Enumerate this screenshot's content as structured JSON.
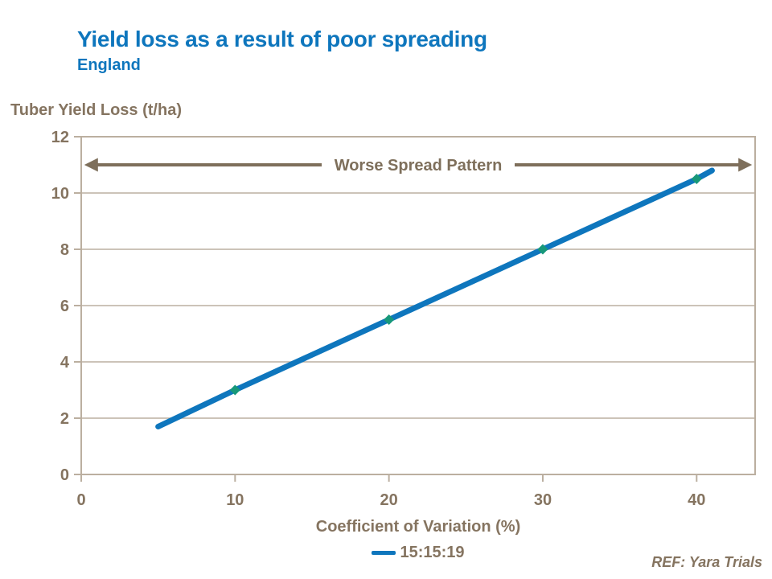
{
  "header": {
    "title": "Yield loss as a result of poor spreading",
    "subtitle": "England"
  },
  "colors": {
    "accent_blue": "#0e76bd",
    "text_brown": "#857460",
    "axis_tan": "#bbafa0",
    "arrow_brown": "#7e6f5b",
    "marker_teal": "#17987a"
  },
  "chart_data": {
    "type": "line",
    "title": "Yield loss as a result of poor spreading",
    "subtitle": "England",
    "ylabel": "Tuber Yield Loss (t/ha)",
    "xlabel": "Coefficient of Variation (%)",
    "xlim": [
      0,
      43.8
    ],
    "ylim": [
      0,
      12
    ],
    "xticks": [
      0,
      10,
      20,
      30,
      40
    ],
    "yticks": [
      0,
      2,
      4,
      6,
      8,
      10,
      12
    ],
    "grid": "horizontal",
    "legend": {
      "position": "bottom-center",
      "entries": [
        {
          "label": "15:15:19",
          "color": "#0e76bd"
        }
      ]
    },
    "annotation": {
      "text": "Worse Spread Pattern",
      "style": "horizontal-double-headed-arrow",
      "y": 11,
      "x_span": [
        0.2,
        43.6
      ]
    },
    "series": [
      {
        "name": "15:15:19",
        "color": "#0e76bd",
        "x": [
          5,
          10,
          20,
          30,
          40,
          41
        ],
        "y": [
          1.7,
          3,
          5.5,
          8,
          10.5,
          10.8
        ],
        "markers": {
          "shape": "diamond",
          "color": "#17987a",
          "x": [
            10,
            20,
            30,
            40
          ],
          "y": [
            3,
            5.5,
            8,
            10.5
          ]
        }
      }
    ]
  },
  "footer": {
    "reference": "REF: Yara Trials"
  }
}
